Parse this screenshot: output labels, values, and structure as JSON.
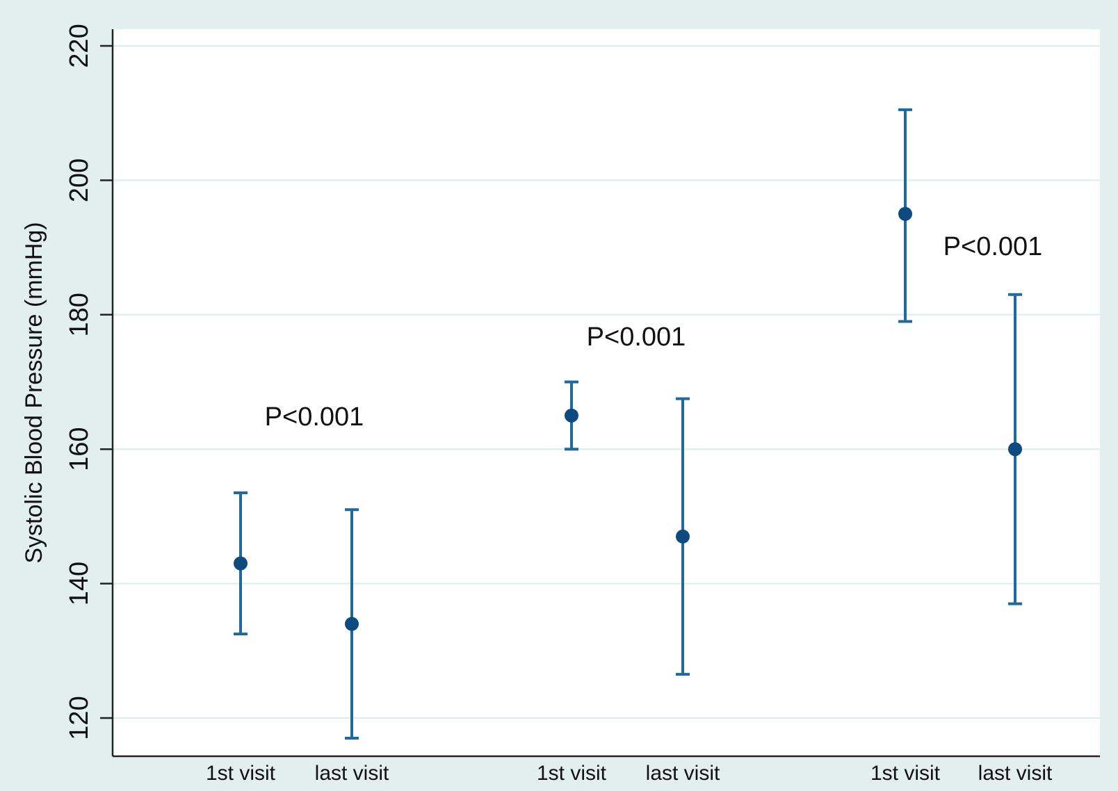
{
  "chart_data": {
    "type": "scatter",
    "title": "",
    "xlabel": "",
    "ylabel": "Systolic Blood Pressure (mmHg)",
    "ylim": [
      115,
      222
    ],
    "yticks": [
      120,
      140,
      160,
      180,
      200,
      220
    ],
    "grid": true,
    "legend": "none",
    "categories": [
      "1st visit",
      "last visit",
      "1st visit",
      "last visit",
      "1st visit",
      "last visit"
    ],
    "groups": [
      {
        "annotation": "P<0.001",
        "points": [
          {
            "label": "1st visit",
            "mean": 143,
            "lower": 132.5,
            "upper": 153.5
          },
          {
            "label": "last visit",
            "mean": 134,
            "lower": 117,
            "upper": 151
          }
        ]
      },
      {
        "annotation": "P<0.001",
        "points": [
          {
            "label": "1st visit",
            "mean": 165,
            "lower": 160,
            "upper": 170
          },
          {
            "label": "last visit",
            "mean": 147,
            "lower": 126.5,
            "upper": 167.5
          }
        ]
      },
      {
        "annotation": "P<0.001",
        "points": [
          {
            "label": "1st visit",
            "mean": 195,
            "lower": 179,
            "upper": 210.5
          },
          {
            "label": "last visit",
            "mean": 160,
            "lower": 137,
            "upper": 183
          }
        ]
      }
    ],
    "colors": {
      "marker": "#0d4a80",
      "errorbar": "#1f6a9c",
      "grid": "#d9ecee",
      "axis": "#222222",
      "outer_background": "#e3eeee",
      "plot_background": "#ffffff"
    }
  }
}
